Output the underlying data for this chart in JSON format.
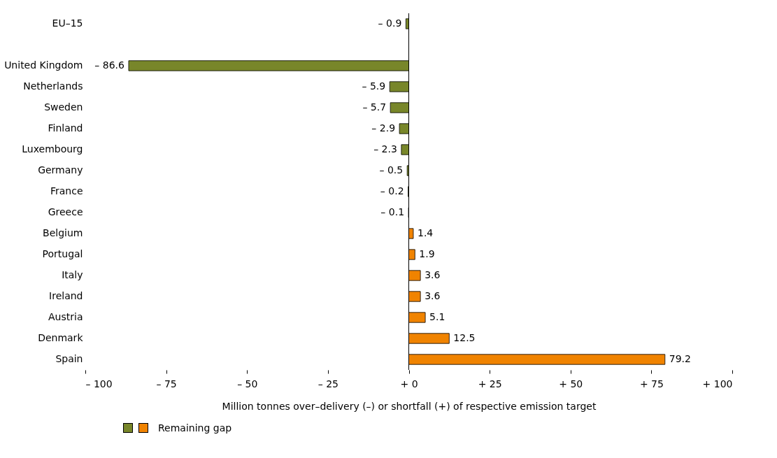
{
  "chart_data": {
    "type": "bar",
    "orientation": "horizontal",
    "categories": [
      "EU–15",
      null,
      "United Kingdom",
      "Netherlands",
      "Sweden",
      "Finland",
      "Luxembourg",
      "Germany",
      "France",
      "Greece",
      "Belgium",
      "Portugal",
      "Italy",
      "Ireland",
      "Austria",
      "Denmark",
      "Spain"
    ],
    "series": [
      {
        "name": "Remaining gap",
        "values": [
          -0.9,
          null,
          -86.6,
          -5.9,
          -5.7,
          -2.9,
          -2.3,
          -0.5,
          -0.2,
          -0.1,
          1.4,
          1.9,
          3.6,
          3.6,
          5.1,
          12.5,
          79.2
        ],
        "colors": [
          "#78862a",
          null,
          "#78862a",
          "#78862a",
          "#78862a",
          "#78862a",
          "#78862a",
          "#78862a",
          "#78862a",
          "#78862a",
          "#f08300",
          "#f08300",
          "#f08300",
          "#f08300",
          "#f08300",
          "#f08300",
          "#f08300"
        ],
        "value_labels": [
          "– 0.9",
          null,
          "– 86.6",
          "– 5.9",
          "– 5.7",
          "– 2.9",
          "– 2.3",
          "– 0.5",
          "– 0.2",
          "– 0.1",
          "1.4",
          "1.9",
          "3.6",
          "3.6",
          "5.1",
          "12.5",
          "79.2"
        ]
      }
    ],
    "xlim": [
      -100,
      100
    ],
    "xticks": [
      {
        "value": -100,
        "label": "– 100"
      },
      {
        "value": -75,
        "label": "– 75"
      },
      {
        "value": -50,
        "label": "– 50"
      },
      {
        "value": -25,
        "label": "– 25"
      },
      {
        "value": 0,
        "label": "+ 0"
      },
      {
        "value": 25,
        "label": "+ 25"
      },
      {
        "value": 50,
        "label": "+ 50"
      },
      {
        "value": 75,
        "label": "+ 75"
      },
      {
        "value": 100,
        "label": "+ 100"
      }
    ],
    "xlabel": "Million tonnes over–delivery (–) or shortfall (+) of respective emission target",
    "ref_lines": [
      {
        "axis": "x",
        "value": 0
      }
    ],
    "grid": false,
    "legend": "bottom left"
  }
}
